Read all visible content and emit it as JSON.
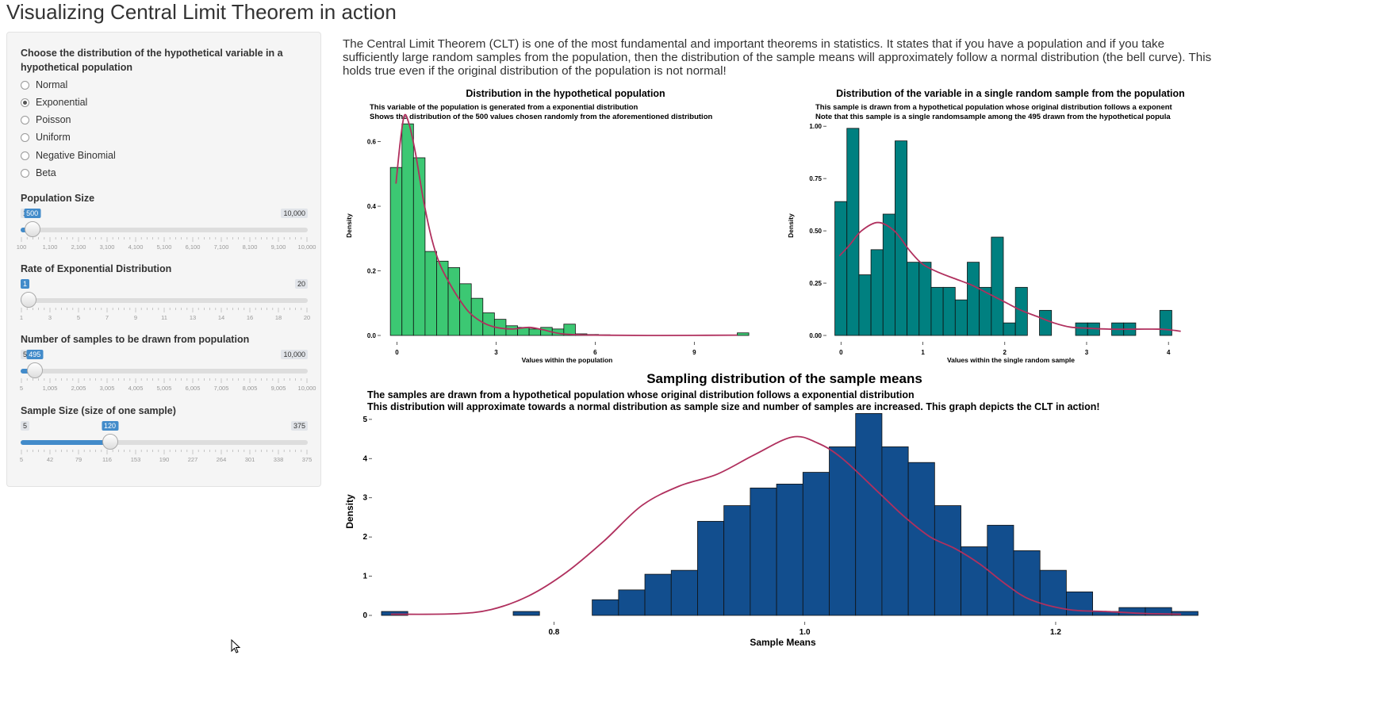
{
  "page": {
    "title": "Visualizing Central Limit Theorem in action",
    "intro": "The Central Limit Theorem (CLT) is one of the most fundamental and important theorems in statistics. It states that if you have a population and if you take sufficiently large random samples from the population, then the distribution of the sample means will approximately follow a normal distribution (the bell curve). This holds true even if the original distribution of the population is not normal!"
  },
  "sidebar": {
    "dist_label": "Choose the distribution of the hypothetical variable in a hypothetical population",
    "options": [
      {
        "label": "Normal",
        "checked": false
      },
      {
        "label": "Exponential",
        "checked": true
      },
      {
        "label": "Poisson",
        "checked": false
      },
      {
        "label": "Uniform",
        "checked": false
      },
      {
        "label": "Negative Binomial",
        "checked": false
      },
      {
        "label": "Beta",
        "checked": false
      }
    ],
    "sliders": [
      {
        "label": "Population Size",
        "min": 100,
        "max": 10000,
        "value": 500,
        "min_label": "100",
        "max_label": "10,000",
        "value_label": "500",
        "ticks": [
          "100",
          "1,100",
          "2,100",
          "3,100",
          "4,100",
          "5,100",
          "6,100",
          "7,100",
          "8,100",
          "9,100",
          "10,000"
        ]
      },
      {
        "label": "Rate of Exponential Distribution",
        "min": 1,
        "max": 20,
        "value": 1,
        "min_label": "1",
        "max_label": "20",
        "value_label": "1",
        "ticks": [
          "1",
          "3",
          "5",
          "7",
          "9",
          "11",
          "13",
          "14",
          "16",
          "18",
          "20"
        ]
      },
      {
        "label": "Number of samples to be drawn from population",
        "min": 5,
        "max": 10000,
        "value": 495,
        "min_label": "5",
        "max_label": "10,000",
        "value_label": "495",
        "ticks": [
          "5",
          "1,005",
          "2,005",
          "3,005",
          "4,005",
          "5,005",
          "6,005",
          "7,005",
          "8,005",
          "9,005",
          "10,000"
        ]
      },
      {
        "label": "Sample Size (size of one sample)",
        "min": 5,
        "max": 375,
        "value": 120,
        "min_label": "5",
        "max_label": "375",
        "value_label": "120",
        "ticks": [
          "5",
          "42",
          "79",
          "116",
          "153",
          "190",
          "227",
          "264",
          "301",
          "338",
          "375"
        ]
      }
    ]
  },
  "colors": {
    "accent": "#428bca",
    "curve": "#b0305e",
    "hist1": "#3cc873",
    "hist2": "#008080",
    "hist3": "#124e8e"
  },
  "chart_data": [
    {
      "type": "bar",
      "title": "Distribution in the hypothetical population",
      "subtitle": [
        "This variable of the population is generated from a exponential distribution",
        "Shows the distribution of the 500 values chosen randomly from the aforementioned distribution"
      ],
      "xlabel": "Values within the population",
      "ylabel": "Density",
      "xlim": [
        -0.3,
        10.6
      ],
      "ylim": [
        0,
        0.68
      ],
      "xticks": [
        0,
        3,
        6,
        9
      ],
      "xtick_labels": [
        "0",
        "3",
        "6",
        "9"
      ],
      "yticks": [
        0,
        0.2,
        0.4,
        0.6
      ],
      "ytick_labels": [
        "0.0",
        "0.2",
        "0.4",
        "0.6"
      ],
      "bin_start": -0.2,
      "bin_width": 0.35,
      "values": [
        0.52,
        0.655,
        0.55,
        0.26,
        0.23,
        0.21,
        0.16,
        0.115,
        0.07,
        0.05,
        0.03,
        0.025,
        0.02,
        0.025,
        0.02,
        0.035,
        0.005,
        0.003,
        0.002
      ],
      "tail_bars": [
        {
          "x": 10.3,
          "value": 0.008
        }
      ],
      "density": [
        [
          -0.03,
          0.47
        ],
        [
          0.1,
          0.6
        ],
        [
          0.22,
          0.68
        ],
        [
          0.35,
          0.66
        ],
        [
          0.55,
          0.57
        ],
        [
          0.8,
          0.42
        ],
        [
          1.05,
          0.3
        ],
        [
          1.3,
          0.22
        ],
        [
          1.6,
          0.16
        ],
        [
          1.9,
          0.11
        ],
        [
          2.2,
          0.07
        ],
        [
          2.6,
          0.04
        ],
        [
          3.0,
          0.025
        ],
        [
          3.5,
          0.02
        ],
        [
          4.0,
          0.025
        ],
        [
          4.4,
          0.018
        ],
        [
          5.0,
          0.005
        ],
        [
          6.0,
          0.001
        ],
        [
          8.0,
          0.0
        ],
        [
          10.3,
          0.001
        ]
      ]
    },
    {
      "type": "bar",
      "title": "Distribution of the variable in a single random sample from the population",
      "subtitle": [
        "This sample is drawn from a hypothetical population whose original distribution follows a exponent",
        "Note that this sample is a single randomsample among the 495 drawn from the hypothetical popula"
      ],
      "xlabel": "Values within the single random sample",
      "ylabel": "Density",
      "xlim": [
        -0.1,
        4.25
      ],
      "ylim": [
        0,
        1.05
      ],
      "xticks": [
        0,
        1,
        2,
        3,
        4
      ],
      "xtick_labels": [
        "0",
        "1",
        "2",
        "3",
        "4"
      ],
      "yticks": [
        0,
        0.25,
        0.5,
        0.75,
        1.0
      ],
      "ytick_labels": [
        "0.00",
        "0.25",
        "0.50",
        "0.75",
        "1.00"
      ],
      "bin_start": -0.075,
      "bin_width": 0.147,
      "values": [
        0.64,
        0.99,
        0.29,
        0.41,
        0.58,
        0.93,
        0.35,
        0.35,
        0.23,
        0.23,
        0.17,
        0.35,
        0.23,
        0.47,
        0.06,
        0.23,
        0.0,
        0.12,
        0.0,
        0.0,
        0.06,
        0.06,
        0.0,
        0.06,
        0.06,
        0.0,
        0.0,
        0.12
      ],
      "density": [
        [
          -0.02,
          0.38
        ],
        [
          0.1,
          0.43
        ],
        [
          0.25,
          0.5
        ],
        [
          0.45,
          0.54
        ],
        [
          0.65,
          0.5
        ],
        [
          0.85,
          0.4
        ],
        [
          1.0,
          0.34
        ],
        [
          1.2,
          0.3
        ],
        [
          1.4,
          0.27
        ],
        [
          1.6,
          0.24
        ],
        [
          1.8,
          0.2
        ],
        [
          2.0,
          0.16
        ],
        [
          2.2,
          0.12
        ],
        [
          2.4,
          0.09
        ],
        [
          2.6,
          0.06
        ],
        [
          2.8,
          0.04
        ],
        [
          3.0,
          0.035
        ],
        [
          3.3,
          0.03
        ],
        [
          3.6,
          0.03
        ],
        [
          3.9,
          0.03
        ],
        [
          4.05,
          0.025
        ],
        [
          4.15,
          0.02
        ]
      ]
    },
    {
      "type": "bar",
      "title": "Sampling distribution of the sample means",
      "subtitle": [
        "The samples are drawn from a hypothetical population whose original distribution follows a exponential distribution",
        "This distribution will approximate towards a normal distribution as sample size and number of samples are increased. This graph depicts the CLT in action!"
      ],
      "xlabel": "Sample Means",
      "ylabel": "Density",
      "xlim": [
        0.66,
        1.305
      ],
      "ylim": [
        0,
        5.3
      ],
      "xticks": [
        0.8,
        1.0,
        1.2
      ],
      "xtick_labels": [
        "0.8",
        "1.0",
        "1.2"
      ],
      "yticks": [
        0,
        1,
        2,
        3,
        4,
        5
      ],
      "ytick_labels": [
        "0",
        "1",
        "2",
        "3",
        "4",
        "5"
      ],
      "bin_start": 0.6625,
      "bin_width": 0.021,
      "values": [
        0.1,
        0.0,
        0.0,
        0.0,
        0.0,
        0.1,
        0.0,
        0.0,
        0.4,
        0.65,
        1.05,
        1.15,
        2.4,
        2.8,
        3.25,
        3.35,
        3.65,
        4.3,
        5.15,
        4.3,
        3.9,
        2.8,
        1.75,
        2.3,
        1.65,
        1.15,
        0.6,
        0.1,
        0.2,
        0.2,
        0.1,
        0.0,
        0.1,
        0.1
      ],
      "density": [
        [
          0.67,
          0.03
        ],
        [
          0.72,
          0.04
        ],
        [
          0.75,
          0.15
        ],
        [
          0.78,
          0.5
        ],
        [
          0.81,
          1.1
        ],
        [
          0.84,
          1.9
        ],
        [
          0.87,
          2.8
        ],
        [
          0.9,
          3.3
        ],
        [
          0.93,
          3.6
        ],
        [
          0.96,
          4.1
        ],
        [
          0.99,
          4.55
        ],
        [
          1.01,
          4.4
        ],
        [
          1.03,
          4.0
        ],
        [
          1.06,
          3.1
        ],
        [
          1.08,
          2.5
        ],
        [
          1.1,
          2.0
        ],
        [
          1.12,
          1.7
        ],
        [
          1.14,
          1.3
        ],
        [
          1.16,
          0.8
        ],
        [
          1.18,
          0.4
        ],
        [
          1.21,
          0.15
        ],
        [
          1.24,
          0.1
        ],
        [
          1.27,
          0.05
        ],
        [
          1.3,
          0.03
        ]
      ]
    }
  ]
}
